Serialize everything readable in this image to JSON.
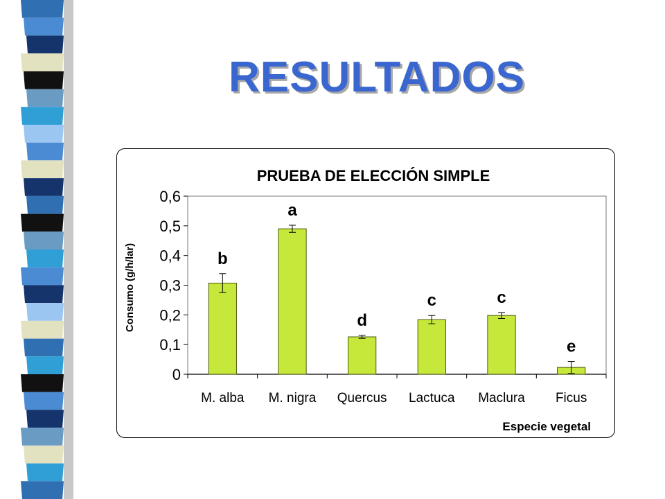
{
  "slide": {
    "title": "RESULTADOS"
  },
  "colors": {
    "title": "#3a66cf",
    "bar_fill": "#c6e83a",
    "bar_stroke": "#4a5a10",
    "strip_palette": [
      "#2f6fb2",
      "#4a8bd4",
      "#15346b",
      "#e3e2c0",
      "#111111",
      "#6a9cc3",
      "#2f9fd6",
      "#9cc6f2"
    ]
  },
  "chart_data": {
    "type": "bar",
    "title": "PRUEBA DE ELECCIÓN SIMPLE",
    "xlabel": "Especie vegetal",
    "ylabel": "Consumo (g/h/lar)",
    "categories": [
      "M. alba",
      "M. nigra",
      "Quercus",
      "Lactuca",
      "Maclura",
      "Ficus"
    ],
    "values": [
      0.307,
      0.49,
      0.126,
      0.184,
      0.198,
      0.023
    ],
    "errors": [
      0.032,
      0.012,
      0.005,
      0.014,
      0.01,
      0.02
    ],
    "letters": [
      "b",
      "a",
      "d",
      "c",
      "c",
      "e"
    ],
    "y_ticks": [
      "0",
      "0,1",
      "0,2",
      "0,3",
      "0,4",
      "0,5",
      "0,6"
    ],
    "ylim": [
      0,
      0.6
    ],
    "grid": false,
    "legend": "none"
  }
}
